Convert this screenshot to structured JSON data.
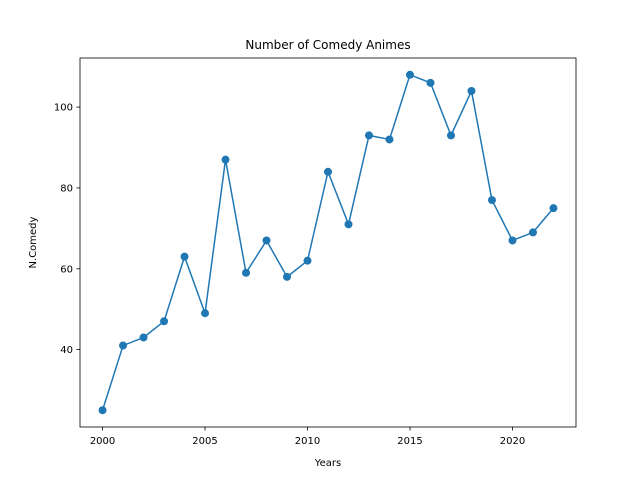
{
  "chart_data": {
    "type": "line",
    "title": "Number of Comedy Animes",
    "xlabel": "Years",
    "ylabel": "N.Comedy",
    "x": [
      2000,
      2001,
      2002,
      2003,
      2004,
      2005,
      2006,
      2007,
      2008,
      2009,
      2010,
      2011,
      2012,
      2013,
      2014,
      2015,
      2016,
      2017,
      2018,
      2019,
      2020,
      2021,
      2022
    ],
    "series": [
      {
        "values": [
          25,
          41,
          43,
          47,
          63,
          49,
          87,
          59,
          67,
          58,
          62,
          84,
          71,
          93,
          92,
          108,
          106,
          93,
          104,
          77,
          67,
          69,
          75
        ],
        "color": "#1f77b4",
        "marker": "circle"
      }
    ],
    "xlim": [
      1998.9,
      2023.1
    ],
    "ylim": [
      20.85,
      112.15
    ],
    "xticks": [
      "2000",
      "2005",
      "2010",
      "2015",
      "2020"
    ],
    "yticks": [
      "40",
      "60",
      "80",
      "100"
    ],
    "grid": false,
    "legend": false
  }
}
